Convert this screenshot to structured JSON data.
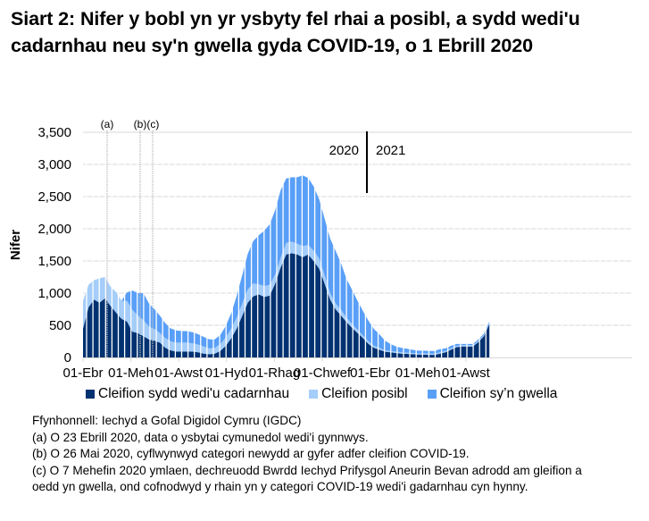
{
  "title": "Siart 2: Nifer y bobl yn yr ysbyty fel rhai a posibl, a sydd wedi'u cadarnhau neu sy'n gwella gyda COVID-19, o 1 Ebrill 2020",
  "chart_data": {
    "type": "area",
    "stacked": true,
    "title": "Siart 2: Nifer y bobl yn yr ysbyty fel rhai a posibl, a sydd wedi'u cadarnhau neu sy'n gwella gyda COVID-19, o 1 Ebrill 2020",
    "xlabel": "",
    "ylabel": "Nifer",
    "ylim": [
      0,
      3500
    ],
    "yticks": [
      0,
      500,
      1000,
      1500,
      2000,
      2500,
      3000,
      3500
    ],
    "ytick_labels": [
      "0",
      "500",
      "1,000",
      "1,500",
      "2,000",
      "2,500",
      "3,000",
      "3,500"
    ],
    "xtick_labels": [
      "01-Ebr",
      "01-Meh",
      "01-Awst",
      "01-Hyd",
      "01-Rhag",
      "01-Chwef",
      "01-Ebr",
      "01-Meh",
      "01-Awst"
    ],
    "grid": true,
    "legend_position": "bottom",
    "annotations": [
      {
        "label": "(a)",
        "date": "2020-04-23"
      },
      {
        "label": "(b)",
        "date": "2020-05-26"
      },
      {
        "label": "(c)",
        "date": "2020-06-07"
      },
      {
        "label": "2020",
        "position": "left of year divider"
      },
      {
        "label": "2021",
        "position": "right of year divider"
      }
    ],
    "x": [
      "2020-04-01",
      "2020-04-08",
      "2020-04-15",
      "2020-04-22",
      "2020-04-29",
      "2020-05-06",
      "2020-05-13",
      "2020-05-20",
      "2020-05-27",
      "2020-06-03",
      "2020-06-10",
      "2020-06-17",
      "2020-06-24",
      "2020-07-01",
      "2020-07-08",
      "2020-07-15",
      "2020-07-22",
      "2020-07-29",
      "2020-08-05",
      "2020-08-12",
      "2020-08-19",
      "2020-08-26",
      "2020-09-02",
      "2020-09-09",
      "2020-09-16",
      "2020-09-23",
      "2020-09-30",
      "2020-10-07",
      "2020-10-14",
      "2020-10-21",
      "2020-10-28",
      "2020-11-04",
      "2020-11-11",
      "2020-11-18",
      "2020-11-25",
      "2020-12-02",
      "2020-12-09",
      "2020-12-16",
      "2020-12-23",
      "2020-12-30",
      "2021-01-06",
      "2021-01-13",
      "2021-01-20",
      "2021-01-27",
      "2021-02-03",
      "2021-02-10",
      "2021-02-17",
      "2021-02-24",
      "2021-03-03",
      "2021-03-10",
      "2021-03-17",
      "2021-03-24",
      "2021-03-31",
      "2021-04-07",
      "2021-04-14",
      "2021-04-21",
      "2021-04-28",
      "2021-05-05",
      "2021-05-12",
      "2021-05-19",
      "2021-05-26",
      "2021-06-02",
      "2021-06-09",
      "2021-06-16",
      "2021-06-23",
      "2021-06-30",
      "2021-07-07",
      "2021-07-14",
      "2021-07-21",
      "2021-07-28",
      "2021-08-04",
      "2021-08-11",
      "2021-08-18",
      "2021-08-25",
      "2021-09-01"
    ],
    "series": [
      {
        "name": "Cleifion sydd wedi'u cadarnhau",
        "color": "#003170",
        "values": [
          450,
          780,
          900,
          850,
          920,
          800,
          700,
          600,
          560,
          400,
          380,
          330,
          280,
          260,
          230,
          150,
          110,
          90,
          90,
          90,
          90,
          80,
          60,
          50,
          60,
          100,
          180,
          300,
          450,
          650,
          850,
          950,
          980,
          940,
          960,
          1150,
          1400,
          1600,
          1620,
          1600,
          1560,
          1600,
          1500,
          1380,
          1150,
          900,
          750,
          650,
          550,
          460,
          380,
          300,
          210,
          150,
          120,
          90,
          80,
          70,
          60,
          55,
          50,
          45,
          45,
          40,
          40,
          60,
          80,
          120,
          160,
          170,
          170,
          170,
          240,
          330,
          520
        ]
      },
      {
        "name": "Cleifion posibl",
        "color": "#a5cdf9",
        "values": [
          430,
          350,
          300,
          380,
          330,
          300,
          320,
          280,
          320,
          340,
          270,
          250,
          200,
          180,
          150,
          150,
          140,
          140,
          140,
          140,
          130,
          120,
          110,
          90,
          90,
          110,
          130,
          150,
          170,
          190,
          210,
          200,
          160,
          170,
          170,
          140,
          150,
          180,
          180,
          170,
          170,
          150,
          160,
          160,
          130,
          100,
          90,
          90,
          70,
          60,
          50,
          40,
          40,
          30,
          30,
          20,
          20,
          20,
          20,
          20,
          20,
          15,
          20,
          20,
          20,
          20,
          20,
          20,
          20,
          20,
          20,
          20,
          20,
          20,
          20
        ]
      },
      {
        "name": "Cleifion sy’n gwella",
        "color": "#599ff7",
        "values": [
          0,
          0,
          0,
          0,
          0,
          0,
          0,
          0,
          130,
          300,
          350,
          420,
          360,
          310,
          270,
          230,
          200,
          190,
          180,
          180,
          170,
          160,
          150,
          140,
          130,
          140,
          180,
          240,
          340,
          440,
          550,
          660,
          760,
          860,
          940,
          1000,
          1050,
          1000,
          1000,
          1030,
          1100,
          1040,
          1000,
          920,
          880,
          850,
          820,
          720,
          600,
          530,
          450,
          380,
          320,
          260,
          210,
          150,
          110,
          80,
          70,
          60,
          50,
          45,
          40,
          40,
          40,
          50,
          40,
          40,
          30,
          20,
          20,
          20,
          20,
          20,
          20
        ]
      }
    ]
  },
  "legend": [
    {
      "label": "Cleifion sydd wedi'u cadarnhau",
      "color": "#003170"
    },
    {
      "label": "Cleifion posibl",
      "color": "#a5cdf9"
    },
    {
      "label": "Cleifion sy’n gwella",
      "color": "#599ff7"
    }
  ],
  "notes": {
    "source": "Ffynhonnell: Iechyd a Gofal Digidol Cymru (IGDC)",
    "a": "(a) O 23 Ebrill 2020, data o ysbytai cymunedol wedi'i gynnwys.",
    "b": "(b) O 26 Mai 2020, cyflwynwyd categori newydd ar gyfer adfer cleifion COVID-19.",
    "c1": "(c) O 7 Mehefin 2020 ymlaen, dechreuodd Bwrdd Iechyd Prifysgol Aneurin Bevan adrodd am gleifion a",
    "c2": "oedd yn gwella, ond cofnodwyd y rhain yn y categori COVID-19 wedi'i gadarnhau cyn hynny."
  }
}
